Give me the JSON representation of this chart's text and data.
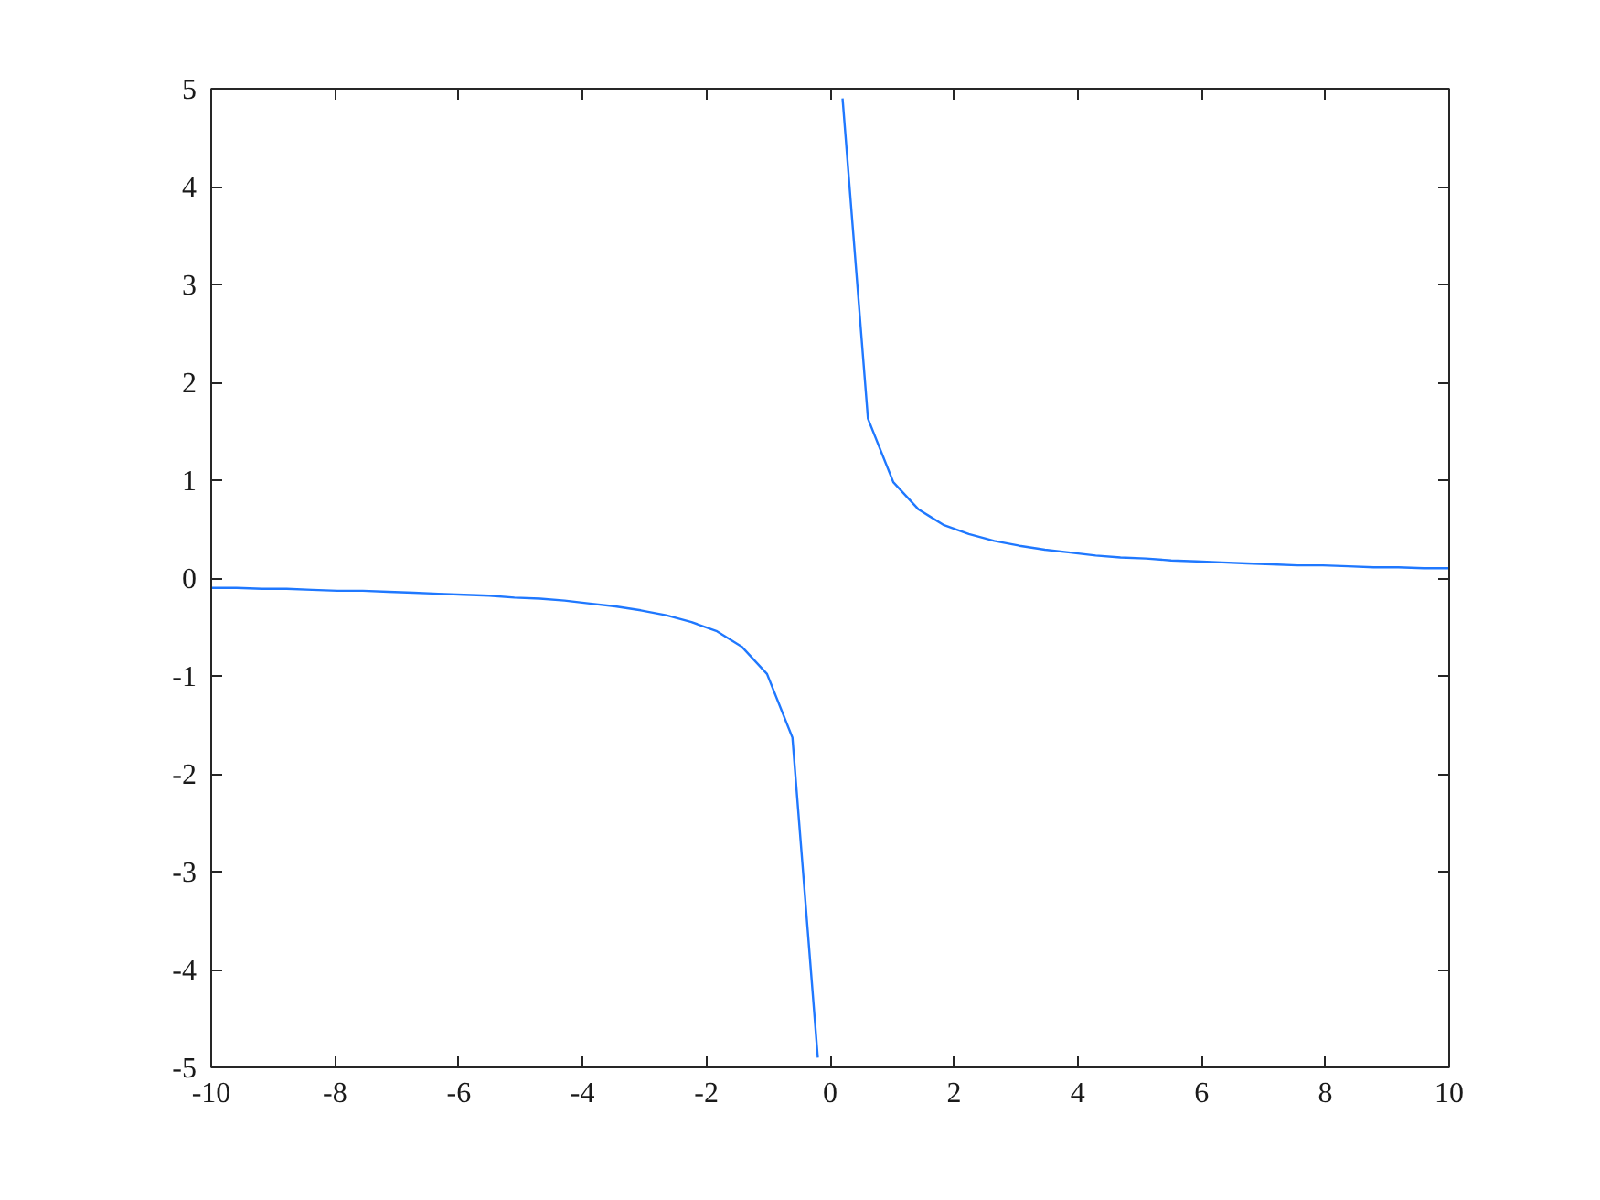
{
  "chart_data": {
    "type": "line",
    "x": [
      -10,
      -9.59,
      -9.18,
      -8.78,
      -8.37,
      -7.96,
      -7.55,
      -7.14,
      -6.73,
      -6.33,
      -5.92,
      -5.51,
      -5.1,
      -4.69,
      -4.29,
      -3.88,
      -3.47,
      -3.06,
      -2.65,
      -2.24,
      -1.84,
      -1.43,
      -1.02,
      -0.61,
      -0.2,
      0,
      0.2,
      0.61,
      1.02,
      1.43,
      1.84,
      2.24,
      2.65,
      3.06,
      3.47,
      3.88,
      4.29,
      4.69,
      5.1,
      5.51,
      5.92,
      6.33,
      6.73,
      7.14,
      7.55,
      7.96,
      8.37,
      8.78,
      9.18,
      9.59,
      10
    ],
    "series": [
      {
        "color": "#1f78ff",
        "values": [
          -0.1,
          -0.1,
          -0.11,
          -0.11,
          -0.12,
          -0.13,
          -0.13,
          -0.14,
          -0.15,
          -0.16,
          -0.17,
          -0.18,
          -0.2,
          -0.21,
          -0.23,
          -0.26,
          -0.29,
          -0.33,
          -0.38,
          -0.45,
          -0.54,
          -0.7,
          -0.98,
          -1.63,
          -4.9,
          null,
          4.9,
          1.63,
          0.98,
          0.7,
          0.54,
          0.45,
          0.38,
          0.33,
          0.29,
          0.26,
          0.23,
          0.21,
          0.2,
          0.18,
          0.17,
          0.16,
          0.15,
          0.14,
          0.13,
          0.13,
          0.12,
          0.11,
          0.11,
          0.1,
          0.1
        ]
      }
    ],
    "xlim": [
      -10,
      10
    ],
    "ylim": [
      -5,
      5
    ],
    "xticks": [
      -10,
      -8,
      -6,
      -4,
      -2,
      0,
      2,
      4,
      6,
      8,
      10
    ],
    "yticks": [
      -5,
      -4,
      -3,
      -2,
      -1,
      0,
      1,
      2,
      3,
      4,
      5
    ],
    "grid": false
  }
}
